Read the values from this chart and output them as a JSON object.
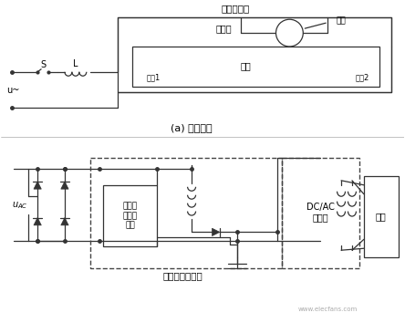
{
  "title_top": "輝光起輝器",
  "label_neon": "氖氣",
  "label_fluorescent": "茨光粉",
  "label_mercury": "水銀",
  "label_filament1": "灯絲1",
  "label_filament2": "灯絲2",
  "label_S": "S",
  "label_L": "L",
  "label_u": "u~",
  "label_caption_a": "(a) 传统电路",
  "label_uac": "u_{AC}",
  "label_pfc_chip": "功率因\n数控制\n芯片",
  "label_dcac": "DC/AC\n逆变器",
  "label_lamp": "灯管",
  "label_pfc": "功率因数控制器",
  "line_color": "#333333",
  "dashed_color": "#555555"
}
